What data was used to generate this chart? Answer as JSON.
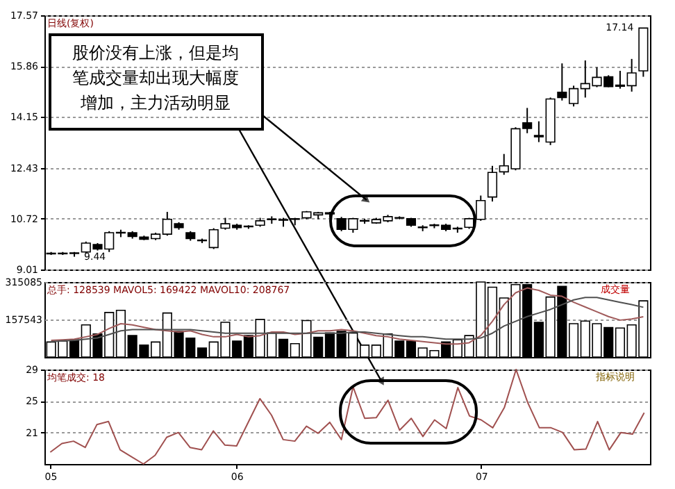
{
  "chart_data": [
    {
      "type": "candlestick",
      "title": "日线(复权)",
      "tick_labels": "y",
      "grid": "y",
      "ylim": [
        9.01,
        17.57
      ],
      "yticks": [
        9.01,
        10.72,
        12.43,
        14.15,
        15.86,
        17.57
      ],
      "categories": [
        "05",
        null,
        null,
        null,
        null,
        null,
        null,
        null,
        null,
        null,
        null,
        null,
        null,
        null,
        null,
        null,
        "06",
        null,
        null,
        null,
        null,
        null,
        null,
        null,
        null,
        null,
        null,
        null,
        null,
        null,
        null,
        null,
        null,
        null,
        null,
        null,
        null,
        "07",
        null,
        null,
        null,
        null,
        null,
        null,
        null,
        null,
        null,
        null,
        null,
        null,
        null,
        null
      ],
      "ohlc": [
        [
          9.54,
          9.6,
          9.5,
          9.56
        ],
        [
          9.54,
          9.6,
          9.5,
          9.56
        ],
        [
          9.55,
          9.6,
          9.44,
          9.57
        ],
        [
          9.6,
          9.95,
          9.55,
          9.9
        ],
        [
          9.85,
          9.9,
          9.65,
          9.7
        ],
        [
          9.7,
          10.3,
          9.6,
          10.25
        ],
        [
          10.24,
          10.35,
          10.1,
          10.26
        ],
        [
          10.25,
          10.3,
          10.05,
          10.12
        ],
        [
          10.1,
          10.15,
          10.0,
          10.03
        ],
        [
          10.05,
          10.25,
          10.0,
          10.2
        ],
        [
          10.2,
          10.95,
          10.15,
          10.7
        ],
        [
          10.55,
          10.6,
          10.35,
          10.42
        ],
        [
          10.25,
          10.3,
          9.98,
          10.05
        ],
        [
          10.0,
          10.05,
          9.9,
          9.98
        ],
        [
          9.75,
          10.4,
          9.7,
          10.35
        ],
        [
          10.4,
          10.75,
          10.35,
          10.55
        ],
        [
          10.5,
          10.55,
          10.35,
          10.42
        ],
        [
          10.45,
          10.5,
          10.38,
          10.47
        ],
        [
          10.5,
          10.75,
          10.45,
          10.65
        ],
        [
          10.69,
          10.8,
          10.55,
          10.71
        ],
        [
          10.67,
          10.75,
          10.45,
          10.69
        ],
        [
          10.7,
          10.75,
          10.5,
          10.72
        ],
        [
          10.75,
          10.98,
          10.7,
          10.95
        ],
        [
          10.85,
          10.95,
          10.7,
          10.92
        ],
        [
          10.92,
          10.95,
          10.75,
          10.88
        ],
        [
          10.72,
          10.78,
          10.3,
          10.36
        ],
        [
          10.36,
          10.75,
          10.25,
          10.72
        ],
        [
          10.64,
          10.72,
          10.55,
          10.66
        ],
        [
          10.58,
          10.75,
          10.55,
          10.69
        ],
        [
          10.65,
          10.85,
          10.6,
          10.79
        ],
        [
          10.74,
          10.8,
          10.7,
          10.76
        ],
        [
          10.72,
          10.75,
          10.45,
          10.5
        ],
        [
          10.42,
          10.5,
          10.3,
          10.44
        ],
        [
          10.49,
          10.55,
          10.4,
          10.51
        ],
        [
          10.5,
          10.55,
          10.3,
          10.36
        ],
        [
          10.38,
          10.45,
          10.25,
          10.4
        ],
        [
          10.43,
          10.75,
          10.38,
          10.72
        ],
        [
          10.7,
          11.5,
          10.65,
          11.33
        ],
        [
          11.45,
          12.5,
          11.3,
          12.28
        ],
        [
          12.3,
          12.9,
          12.2,
          12.5
        ],
        [
          12.4,
          13.8,
          12.35,
          13.75
        ],
        [
          13.95,
          14.45,
          13.6,
          13.76
        ],
        [
          13.48,
          14.0,
          13.3,
          13.52
        ],
        [
          13.3,
          14.8,
          13.2,
          14.75
        ],
        [
          14.98,
          15.95,
          14.7,
          14.8
        ],
        [
          14.6,
          15.2,
          14.5,
          15.1
        ],
        [
          15.1,
          16.05,
          14.8,
          15.27
        ],
        [
          15.2,
          15.82,
          15.15,
          15.48
        ],
        [
          15.5,
          15.55,
          15.15,
          15.17
        ],
        [
          15.18,
          15.7,
          15.1,
          15.22
        ],
        [
          15.2,
          16.1,
          15.0,
          15.63
        ],
        [
          15.7,
          17.14,
          15.5,
          17.14
        ]
      ],
      "colors": [
        "#000000",
        "#000000",
        "#000000",
        "#ffffff",
        "#000000",
        "#ffffff",
        "#000000",
        "#000000",
        "#000000",
        "#ffffff",
        "#ffffff",
        "#000000",
        "#000000",
        "#000000",
        "#ffffff",
        "#ffffff",
        "#000000",
        "#000000",
        "#ffffff",
        "#000000",
        "#000000",
        "#000000",
        "#ffffff",
        "#ffffff",
        "#000000",
        "#000000",
        "#ffffff",
        "#000000",
        "#ffffff",
        "#ffffff",
        "#000000",
        "#000000",
        "#000000",
        "#000000",
        "#000000",
        "#000000",
        "#ffffff",
        "#ffffff",
        "#ffffff",
        "#ffffff",
        "#ffffff",
        "#000000",
        "#000000",
        "#ffffff",
        "#000000",
        "#ffffff",
        "#ffffff",
        "#ffffff",
        "#000000",
        "#000000",
        "#ffffff",
        "#ffffff"
      ],
      "annotations": [
        "股价没有上涨，但是均笔成交量却出现大幅度增加，主力活动明显",
        "9.44",
        "17.14"
      ]
    },
    {
      "type": "bar",
      "title": "总手: 128539 MAVOL5: 169422 MAVOL10: 208767",
      "tick_labels": "y",
      "grid": "y",
      "ylim": [
        0,
        315085
      ],
      "yticks": [
        157543,
        315085
      ],
      "categories": [
        "05",
        null,
        null,
        null,
        null,
        null,
        null,
        null,
        null,
        null,
        null,
        null,
        null,
        null,
        null,
        null,
        "06",
        null,
        null,
        null,
        null,
        null,
        null,
        null,
        null,
        null,
        null,
        null,
        null,
        null,
        null,
        null,
        null,
        null,
        null,
        null,
        null,
        "07",
        null,
        null,
        null,
        null,
        null,
        null,
        null,
        null,
        null,
        null,
        null,
        null,
        null,
        null
      ],
      "series": [
        {
          "type": "bar",
          "values": [
            63000,
            67000,
            72000,
            135000,
            97000,
            187000,
            196000,
            90000,
            50000,
            63000,
            185000,
            108000,
            79000,
            38000,
            63000,
            146000,
            67000,
            90000,
            158000,
            101000,
            74000,
            56000,
            153000,
            83000,
            101000,
            108000,
            101000,
            50000,
            50000,
            97000,
            67000,
            67000,
            38000,
            27000,
            63000,
            72000,
            90000,
            315000,
            293000,
            248000,
            304000,
            304000,
            146000,
            252000,
            297000,
            140000,
            151000,
            140000,
            124000,
            122000,
            135000,
            236000
          ],
          "colors": [
            "#ffffff",
            "#ffffff",
            "#000000",
            "#ffffff",
            "#000000",
            "#ffffff",
            "#ffffff",
            "#000000",
            "#000000",
            "#ffffff",
            "#ffffff",
            "#000000",
            "#000000",
            "#000000",
            "#ffffff",
            "#ffffff",
            "#000000",
            "#000000",
            "#ffffff",
            "#ffffff",
            "#000000",
            "#ffffff",
            "#ffffff",
            "#000000",
            "#000000",
            "#000000",
            "#ffffff",
            "#ffffff",
            "#ffffff",
            "#ffffff",
            "#000000",
            "#000000",
            "#ffffff",
            "#ffffff",
            "#000000",
            "#ffffff",
            "#ffffff",
            "#ffffff",
            "#ffffff",
            "#ffffff",
            "#ffffff",
            "#000000",
            "#000000",
            "#ffffff",
            "#000000",
            "#ffffff",
            "#ffffff",
            "#ffffff",
            "#000000",
            "#ffffff",
            "#ffffff",
            "#ffffff"
          ]
        },
        {
          "type": "line",
          "color": "#a05a5a",
          "values": [
            70000,
            72000,
            75000,
            85000,
            95000,
            120000,
            140000,
            135000,
            125000,
            115000,
            110000,
            105000,
            110000,
            95000,
            85000,
            85000,
            95000,
            85000,
            90000,
            105000,
            105000,
            95000,
            100000,
            110000,
            110000,
            115000,
            110000,
            100000,
            90000,
            85000,
            75000,
            70000,
            65000,
            60000,
            55000,
            55000,
            60000,
            90000,
            150000,
            220000,
            270000,
            290000,
            280000,
            260000,
            255000,
            230000,
            210000,
            190000,
            170000,
            155000,
            160000,
            169000
          ]
        },
        {
          "type": "line",
          "color": "#505050",
          "values": [
            65000,
            68000,
            70000,
            75000,
            80000,
            95000,
            110000,
            115000,
            115000,
            115000,
            115000,
            115000,
            115000,
            110000,
            105000,
            100000,
            100000,
            100000,
            100000,
            100000,
            100000,
            100000,
            100000,
            100000,
            100000,
            100000,
            105000,
            105000,
            100000,
            95000,
            90000,
            85000,
            85000,
            80000,
            75000,
            75000,
            75000,
            80000,
            100000,
            130000,
            150000,
            170000,
            185000,
            200000,
            220000,
            240000,
            250000,
            250000,
            240000,
            230000,
            220000,
            209000
          ]
        }
      ],
      "annotations": [
        "成交量"
      ]
    },
    {
      "type": "line",
      "title": "均笔成交: 18",
      "grid": "y",
      "ylim": [
        17,
        29
      ],
      "yticks": [
        21,
        25,
        29
      ],
      "color": "#a0504f",
      "categories": [
        "05",
        null,
        null,
        null,
        null,
        null,
        null,
        null,
        null,
        null,
        null,
        null,
        null,
        null,
        null,
        null,
        "06",
        null,
        null,
        null,
        null,
        null,
        null,
        null,
        null,
        null,
        null,
        null,
        null,
        null,
        null,
        null,
        null,
        null,
        null,
        null,
        null,
        "07",
        null,
        null,
        null,
        null,
        null,
        null,
        null,
        null,
        null,
        null,
        null,
        null,
        null,
        null
      ],
      "values": [
        18.5,
        19.6,
        19.9,
        19.1,
        22.0,
        22.4,
        18.8,
        17.9,
        17.0,
        18.1,
        20.4,
        21.0,
        19.1,
        18.8,
        21.2,
        19.4,
        19.3,
        22.3,
        25.3,
        23.2,
        20.1,
        19.9,
        21.8,
        20.9,
        22.3,
        20.1,
        26.8,
        22.8,
        22.9,
        25.1,
        21.3,
        22.8,
        20.5,
        22.6,
        21.5,
        26.7,
        23.1,
        22.6,
        21.6,
        24.2,
        29.0,
        24.8,
        21.6,
        21.6,
        21.0,
        18.8,
        18.9,
        22.4,
        18.8,
        21.0,
        20.8,
        23.5
      ],
      "annotations": [
        "指标说明"
      ]
    }
  ]
}
